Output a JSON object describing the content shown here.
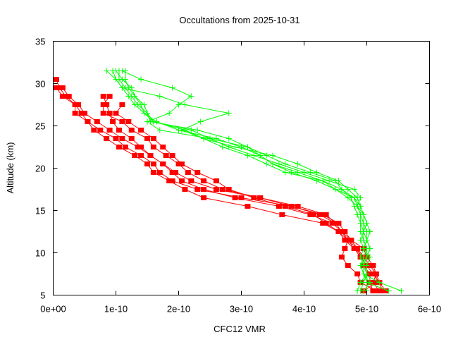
{
  "chart_data": {
    "type": "line",
    "title": "Occultations from 2025-10-31",
    "xlabel": "CFC12 VMR",
    "ylabel": "Altitude (km)",
    "xlim": [
      0,
      6e-10
    ],
    "ylim": [
      5,
      35
    ],
    "xticks": [
      {
        "value": 0,
        "label": "0e+00"
      },
      {
        "value": 1e-10,
        "label": "1e-10"
      },
      {
        "value": 2e-10,
        "label": "2e-10"
      },
      {
        "value": 3e-10,
        "label": "3e-10"
      },
      {
        "value": 4e-10,
        "label": "4e-10"
      },
      {
        "value": 5e-10,
        "label": "5e-10"
      },
      {
        "value": 6e-10,
        "label": "6e-10"
      }
    ],
    "yticks": [
      {
        "value": 5,
        "label": "5"
      },
      {
        "value": 10,
        "label": "10"
      },
      {
        "value": 15,
        "label": "15"
      },
      {
        "value": 20,
        "label": "20"
      },
      {
        "value": 25,
        "label": "25"
      },
      {
        "value": 30,
        "label": "30"
      },
      {
        "value": 35,
        "label": "35"
      }
    ],
    "grid": false,
    "colors": {
      "red_profiles": "#ff0000",
      "green_profiles": "#00ff00"
    },
    "series": [
      {
        "color": "#ff0000",
        "marker": "square",
        "top_altitude": 30.5,
        "x": [
          5e-12,
          1e-11,
          2e-11,
          3.5e-11,
          3.5e-11,
          5.5e-11,
          7.5e-11,
          1e-10,
          1.15e-10,
          1.4e-10,
          1.6e-10,
          1.7e-10,
          1.9e-10,
          2.3e-10,
          3e-10,
          3.8e-10,
          4.3e-10,
          4.55e-10,
          4.65e-10,
          4.75e-10,
          4.85e-10,
          4.9e-10,
          4.95e-10,
          5.05e-10,
          5.05e-10,
          5.1e-10
        ]
      },
      {
        "color": "#ff0000",
        "marker": "square",
        "top_altitude": 29.5,
        "x": [
          1.5e-11,
          2.5e-11,
          4e-11,
          5e-11,
          7e-11,
          9e-11,
          1.1e-10,
          1.35e-10,
          1.55e-10,
          1.75e-10,
          1.95e-10,
          2.2e-10,
          2.6e-10,
          3.3e-10,
          3.9e-10,
          4.35e-10,
          4.5e-10,
          4.6e-10,
          4.7e-10,
          4.8e-10,
          4.9e-10,
          5e-10,
          5.1e-10,
          5.2e-10,
          5.25e-10
        ]
      },
      {
        "color": "#ff0000",
        "marker": "square",
        "top_altitude": 28.5,
        "x": [
          8e-11,
          8.5e-11,
          9e-11,
          9.5e-11,
          1.05e-10,
          1.25e-10,
          1.4e-10,
          1.55e-10,
          1.75e-10,
          1.9e-10,
          2.05e-10,
          2.4e-10,
          2.9e-10,
          3.6e-10,
          4.1e-10,
          4.45e-10,
          4.6e-10,
          4.7e-10,
          4.85e-10,
          4.95e-10,
          5.05e-10,
          5.15e-10,
          5.2e-10,
          5.3e-10
        ]
      },
      {
        "color": "#ff0000",
        "marker": "square",
        "top_altitude": 28.5,
        "x": [
          9e-11,
          8e-11,
          8e-11,
          1.1e-10,
          1.25e-10,
          1.5e-10,
          1.6e-10,
          1.8e-10,
          2e-10,
          2.15e-10,
          2.4e-10,
          2.7e-10,
          3.3e-10,
          3.8e-10,
          4.25e-10,
          4.5e-10,
          4.6e-10,
          4.75e-10,
          4.95e-10,
          5e-10,
          5.1e-10,
          5.15e-10,
          5.15e-10,
          4.95e-10
        ]
      },
      {
        "color": "#ff0000",
        "marker": "square",
        "top_altitude": 27.5,
        "x": [
          1.1e-10,
          1e-10,
          1.2e-10,
          1.4e-10,
          1.6e-10,
          1.75e-10,
          1.9e-10,
          2.05e-10,
          2.3e-10,
          2.6e-10,
          2.8e-10,
          3.2e-10,
          3.7e-10,
          4.15e-10,
          4.35e-10,
          4.55e-10,
          4.7e-10,
          4.65e-10,
          4.6e-10,
          4.7e-10,
          4.85e-10,
          4.9e-10,
          5.15e-10
        ]
      },
      {
        "color": "#ff0000",
        "marker": "square",
        "top_altitude": 29.5,
        "x": [
          5e-12,
          1.5e-11,
          3.5e-11,
          4.5e-11,
          5.5e-11,
          6.5e-11,
          8.5e-11,
          1.05e-10,
          1.3e-10,
          1.5e-10,
          1.6e-10,
          1.85e-10,
          2.1e-10,
          2.4e-10,
          3.1e-10,
          3.65e-10,
          4.3e-10,
          4.55e-10,
          4.65e-10,
          4.8e-10,
          4.95e-10,
          5.05e-10,
          5.15e-10,
          5.1e-10,
          5.2e-10
        ]
      },
      {
        "color": "#00ff00",
        "marker": "plus",
        "top_altitude": 31.5,
        "x": [
          9.5e-11,
          1e-10,
          1.1e-10,
          1.2e-10,
          1.3e-10,
          1.45e-10,
          1.65e-10,
          2e-10,
          2.6e-10,
          3e-10,
          3.3e-10,
          3.5e-10,
          3.9e-10,
          4.3e-10,
          4.6e-10,
          4.75e-10,
          4.8e-10,
          4.85e-10,
          4.9e-10,
          4.9e-10,
          4.95e-10,
          5e-10,
          5e-10,
          4.95e-10,
          4.95e-10,
          5.05e-10,
          4.95e-10
        ]
      },
      {
        "color": "#00ff00",
        "marker": "plus",
        "top_altitude": 31.5,
        "x": [
          1.05e-10,
          1.05e-10,
          1.15e-10,
          1.25e-10,
          1.35e-10,
          1.5e-10,
          1.6e-10,
          2.2e-10,
          2.5e-10,
          2.8e-10,
          3.2e-10,
          3.6e-10,
          4e-10,
          4.4e-10,
          4.8e-10,
          4.9e-10,
          4.85e-10,
          4.95e-10,
          4.95e-10,
          5e-10,
          5e-10,
          5.05e-10,
          5e-10,
          4.9e-10,
          4.95e-10,
          5.2e-10,
          5.55e-10
        ]
      },
      {
        "color": "#00ff00",
        "marker": "plus",
        "top_altitude": 31.5,
        "x": [
          1.15e-10,
          1.15e-10,
          1.2e-10,
          1.3e-10,
          1.45e-10,
          1.5e-10,
          1.55e-10,
          2.3e-10,
          2.8e-10,
          3.1e-10,
          3.4e-10,
          3.7e-10,
          4.1e-10,
          4.5e-10,
          4.6e-10,
          4.8e-10,
          4.9e-10,
          4.95e-10,
          5e-10,
          4.95e-10,
          4.9e-10,
          4.95e-10,
          5.05e-10,
          5e-10,
          5e-10,
          5e-10,
          5.35e-10
        ]
      },
      {
        "color": "#00ff00",
        "marker": "plus",
        "top_altitude": 31.5,
        "x": [
          8.5e-11,
          1e-10,
          1.1e-10,
          1.7e-10,
          2.1e-10,
          2.8e-10,
          2.35e-10,
          2.05e-10,
          2.4e-10,
          2.9e-10,
          3.5e-10,
          3.9e-10,
          4.2e-10,
          4.55e-10,
          4.7e-10,
          4.85e-10,
          4.9e-10,
          4.95e-10,
          5e-10,
          5.05e-10,
          5e-10,
          4.95e-10,
          4.9e-10,
          4.95e-10,
          5e-10,
          4.9e-10,
          4.85e-10
        ]
      },
      {
        "color": "#00ff00",
        "marker": "plus",
        "top_altitude": 31.5,
        "x": [
          1.1e-10,
          1.4e-10,
          1.9e-10,
          2.2e-10,
          2e-10,
          1.85e-10,
          1.5e-10,
          1.7e-10,
          2.5e-10,
          3.1e-10,
          3.3e-10,
          3.5e-10,
          3.8e-10,
          4.2e-10,
          4.5e-10,
          4.7e-10,
          4.85e-10,
          4.9e-10,
          4.95e-10,
          4.95e-10,
          5e-10,
          5.05e-10,
          5e-10,
          4.95e-10,
          5e-10,
          4.95e-10,
          4.9e-10
        ]
      },
      {
        "color": "#00ff00",
        "marker": "plus",
        "top_altitude": 31.5,
        "x": [
          1e-10,
          1.1e-10,
          1.25e-10,
          1.3e-10,
          1.4e-10,
          1.45e-10,
          1.6e-10,
          2.1e-10,
          2.4e-10,
          2.7e-10,
          3.1e-10,
          3.4e-10,
          3.7e-10,
          4.3e-10,
          4.5e-10,
          4.8e-10,
          4.85e-10,
          4.9e-10,
          4.9e-10,
          4.95e-10,
          4.95e-10,
          5e-10,
          4.95e-10,
          4.9e-10,
          4.95e-10,
          5e-10,
          5e-10
        ]
      }
    ]
  }
}
